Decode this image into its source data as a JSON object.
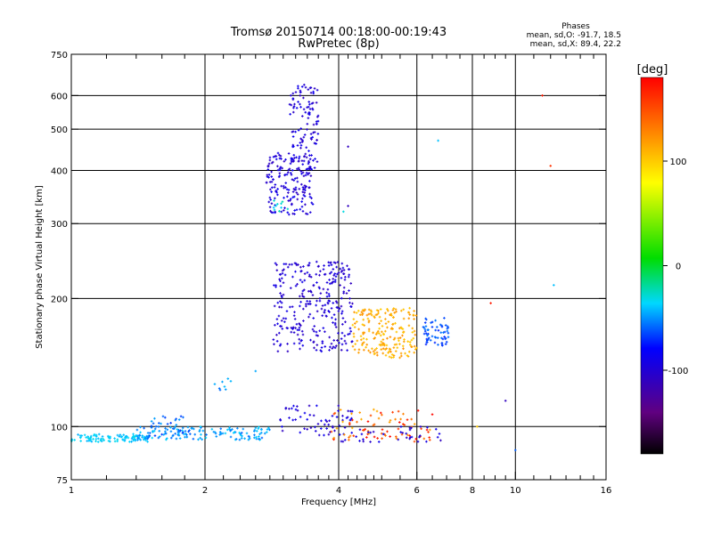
{
  "chart_data": {
    "type": "scatter",
    "title": "Tromsø 20150714 00:18:00-00:19:43",
    "subtitle": "RwPretec (8p)",
    "stats": {
      "heading": "Phases",
      "line_o": "mean, sd,O: -91.7, 18.5",
      "line_x": "mean, sd,X:  89.4, 22.2"
    },
    "xlabel": "Frequency [MHz]",
    "ylabel": "Stationary phase Virtual Height [km]",
    "x_scale": "log",
    "y_scale": "log",
    "xlim": [
      1,
      16
    ],
    "ylim": [
      75,
      750
    ],
    "x_ticks": [
      {
        "value": 1,
        "label": "1"
      },
      {
        "value": 2,
        "label": "2"
      },
      {
        "value": 4,
        "label": "4"
      },
      {
        "value": 6,
        "label": "6"
      },
      {
        "value": 8,
        "label": "8"
      },
      {
        "value": 10,
        "label": "10"
      },
      {
        "value": 16,
        "label": "16"
      }
    ],
    "x_gridlines": [
      2,
      4,
      6,
      8,
      10
    ],
    "x_minor_ticks": [
      1.2,
      1.4,
      1.6,
      1.8,
      2.2,
      2.4,
      2.6,
      2.8,
      3.0,
      3.2,
      3.4,
      3.6,
      3.8,
      4.2,
      4.4,
      4.6,
      4.8,
      5.0,
      5.5,
      6.5,
      7.0,
      7.5,
      8.5,
      9.0,
      9.5,
      11,
      12,
      13,
      14,
      15
    ],
    "y_ticks": [
      {
        "value": 75,
        "label": "75"
      },
      {
        "value": 100,
        "label": "100"
      },
      {
        "value": 200,
        "label": "200"
      },
      {
        "value": 300,
        "label": "300"
      },
      {
        "value": 400,
        "label": "400"
      },
      {
        "value": 500,
        "label": "500"
      },
      {
        "value": 600,
        "label": "600"
      },
      {
        "value": 750,
        "label": "750"
      }
    ],
    "y_gridlines": [
      100,
      200,
      300,
      400,
      500,
      600
    ],
    "colorbar": {
      "label": "[deg]",
      "range": [
        -180,
        180
      ],
      "ticks": [
        {
          "value": 100,
          "label": "100"
        },
        {
          "value": 0,
          "label": "0"
        },
        {
          "value": -100,
          "label": "-100"
        }
      ]
    },
    "clusters": [
      {
        "freq": [
          1.0,
          1.5
        ],
        "height": [
          92,
          96
        ],
        "phase": [
          -45,
          -30
        ],
        "count": 110
      },
      {
        "freq": [
          1.4,
          2.8
        ],
        "height": [
          93,
          100
        ],
        "phase": [
          -60,
          -35
        ],
        "count": 140
      },
      {
        "freq": [
          1.5,
          1.9
        ],
        "height": [
          95,
          107
        ],
        "phase": [
          -70,
          -45
        ],
        "count": 30
      },
      {
        "freq": [
          2.1,
          2.3
        ],
        "height": [
          120,
          130
        ],
        "phase": [
          -60,
          -40
        ],
        "count": 8
      },
      {
        "freq": [
          2.75,
          3.5
        ],
        "height": [
          315,
          440
        ],
        "phase": [
          -110,
          -85
        ],
        "count": 170
      },
      {
        "freq": [
          3.1,
          3.6
        ],
        "height": [
          400,
          640
        ],
        "phase": [
          -110,
          -85
        ],
        "count": 120
      },
      {
        "freq": [
          2.85,
          3.1
        ],
        "height": [
          320,
          340
        ],
        "phase": [
          -40,
          -20
        ],
        "count": 10
      },
      {
        "freq": [
          2.85,
          4.3
        ],
        "height": [
          150,
          245
        ],
        "phase": [
          -110,
          -90
        ],
        "count": 300
      },
      {
        "freq": [
          4.3,
          6.0
        ],
        "height": [
          145,
          190
        ],
        "phase": [
          100,
          125
        ],
        "count": 200
      },
      {
        "freq": [
          6.2,
          7.1
        ],
        "height": [
          155,
          180
        ],
        "phase": [
          -75,
          -55
        ],
        "count": 60
      },
      {
        "freq": [
          2.9,
          4.3
        ],
        "height": [
          95,
          112
        ],
        "phase": [
          -110,
          -85
        ],
        "count": 60
      },
      {
        "freq": [
          3.8,
          6.6
        ],
        "height": [
          92,
          110
        ],
        "phase": [
          110,
          180
        ],
        "count": 80
      },
      {
        "freq": [
          4.0,
          6.8
        ],
        "height": [
          92,
          100
        ],
        "phase": [
          -110,
          -85
        ],
        "count": 40
      }
    ],
    "isolated_points": [
      {
        "x": 4.2,
        "y": 455,
        "phase": -110
      },
      {
        "x": 6.7,
        "y": 470,
        "phase": -40
      },
      {
        "x": 11.5,
        "y": 600,
        "phase": 170
      },
      {
        "x": 12.0,
        "y": 410,
        "phase": 160
      },
      {
        "x": 12.2,
        "y": 215,
        "phase": -40
      },
      {
        "x": 8.8,
        "y": 195,
        "phase": 170
      },
      {
        "x": 9.5,
        "y": 115,
        "phase": -110
      },
      {
        "x": 8.2,
        "y": 100,
        "phase": 100
      },
      {
        "x": 10.0,
        "y": 88,
        "phase": -60
      },
      {
        "x": 4.2,
        "y": 330,
        "phase": -110
      },
      {
        "x": 4.1,
        "y": 320,
        "phase": -30
      },
      {
        "x": 2.6,
        "y": 135,
        "phase": -45
      }
    ]
  }
}
